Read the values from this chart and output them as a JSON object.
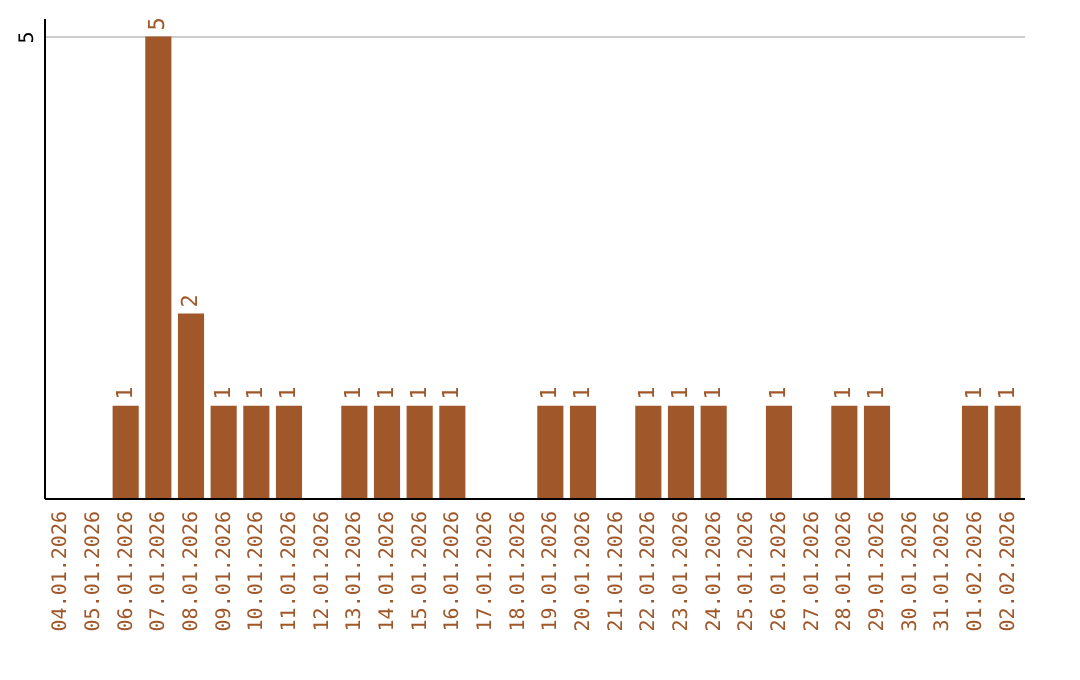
{
  "chart_data": {
    "type": "bar",
    "categories": [
      "04.01.2026",
      "05.01.2026",
      "06.01.2026",
      "07.01.2026",
      "08.01.2026",
      "09.01.2026",
      "10.01.2026",
      "11.01.2026",
      "12.01.2026",
      "13.01.2026",
      "14.01.2026",
      "15.01.2026",
      "16.01.2026",
      "17.01.2026",
      "18.01.2026",
      "19.01.2026",
      "20.01.2026",
      "21.01.2026",
      "22.01.2026",
      "23.01.2026",
      "24.01.2026",
      "25.01.2026",
      "26.01.2026",
      "27.01.2026",
      "28.01.2026",
      "29.01.2026",
      "30.01.2026",
      "31.01.2026",
      "01.02.2026",
      "02.02.2026"
    ],
    "values": [
      null,
      null,
      1,
      5,
      2,
      1,
      1,
      1,
      null,
      1,
      1,
      1,
      1,
      null,
      null,
      1,
      1,
      null,
      1,
      1,
      1,
      null,
      1,
      null,
      1,
      1,
      null,
      null,
      1,
      1
    ],
    "color": "#a0582a",
    "ylim": [
      0,
      5.2
    ],
    "yticks": [
      5
    ],
    "grid": "y",
    "data_labels": true
  }
}
